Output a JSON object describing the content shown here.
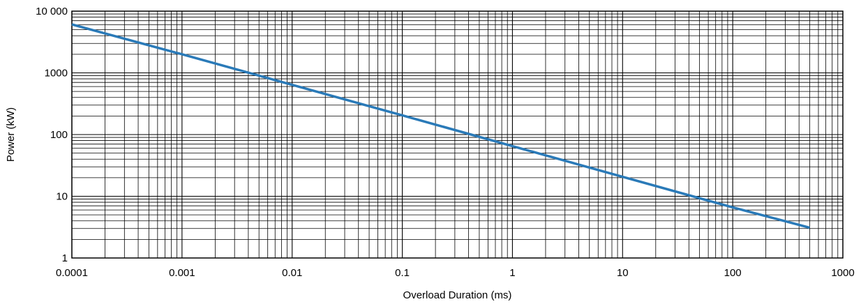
{
  "chart_data": {
    "type": "line",
    "title": "",
    "xlabel": "Overload Duration (ms)",
    "ylabel": "Power (kW)",
    "x_scale": "log",
    "y_scale": "log",
    "xlim": [
      0.0001,
      1000
    ],
    "ylim": [
      1,
      10000
    ],
    "grid": true,
    "x_tick_values": [
      0.0001,
      0.001,
      0.01,
      0.1,
      1,
      10,
      100,
      1000
    ],
    "x_tick_labels": [
      "0.0001",
      "0.001",
      "0.01",
      "0.1",
      "1",
      "10",
      "100",
      "1000"
    ],
    "y_tick_values": [
      1,
      10,
      100,
      1000,
      10000
    ],
    "y_tick_labels": [
      "1",
      "10",
      "100",
      "1000",
      "10 000"
    ],
    "series": [
      {
        "color": "#2a7ab8",
        "x": [
          0.0001,
          0.001,
          0.01,
          0.1,
          1,
          10,
          100,
          500
        ],
        "y": [
          6100,
          2000,
          640,
          205,
          65,
          20.7,
          6.6,
          3.1
        ]
      }
    ]
  }
}
